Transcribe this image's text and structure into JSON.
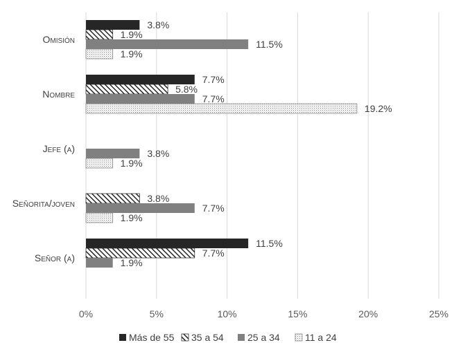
{
  "chart_data": {
    "type": "bar",
    "orientation": "horizontal",
    "categories": [
      "Omisión",
      "Nombre",
      "Jefe (a)",
      "Señorita/joven",
      "Señor (a)"
    ],
    "series": [
      {
        "name": "Más de 55",
        "values": [
          3.8,
          7.7,
          null,
          null,
          11.5
        ],
        "labels": [
          "3.8%",
          "7.7%",
          null,
          null,
          "11.5%"
        ],
        "color": "#262626",
        "pattern": "solid"
      },
      {
        "name": "35 a 54",
        "values": [
          1.9,
          5.8,
          null,
          3.8,
          7.7
        ],
        "labels": [
          "1.9%",
          "5.8%",
          null,
          "3.8%",
          "7.7%"
        ],
        "color": "#262626",
        "pattern": "diagonal-stripes"
      },
      {
        "name": "25 a 34",
        "values": [
          11.5,
          7.7,
          3.8,
          7.7,
          1.9
        ],
        "labels": [
          "11.5%",
          "7.7%",
          "3.8%",
          "7.7%",
          "1.9%"
        ],
        "color": "#808080",
        "pattern": "solid"
      },
      {
        "name": "11 a 24",
        "values": [
          1.9,
          19.2,
          1.9,
          1.9,
          null
        ],
        "labels": [
          "1.9%",
          "19.2%",
          "1.9%",
          "1.9%",
          null
        ],
        "color": "#808080",
        "pattern": "dotted"
      }
    ],
    "xlim": [
      0,
      25
    ],
    "xticks": [
      0,
      5,
      10,
      15,
      20,
      25
    ],
    "xtick_labels": [
      "0%",
      "5%",
      "10%",
      "15%",
      "20%",
      "25%"
    ],
    "grid": "vertical",
    "legend": "bottom",
    "title": "",
    "xlabel": "",
    "ylabel": ""
  }
}
